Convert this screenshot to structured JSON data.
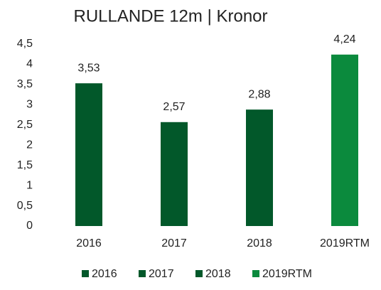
{
  "chart_data": {
    "type": "bar",
    "title": "RULLANDE 12m | Kronor",
    "categories": [
      "2016",
      "2017",
      "2018",
      "2019RTM"
    ],
    "values": [
      3.53,
      2.57,
      2.88,
      4.24
    ],
    "value_labels": [
      "3,53",
      "2,57",
      "2,88",
      "4,24"
    ],
    "colors": [
      "#02582a",
      "#02582a",
      "#02582a",
      "#0b8a3d"
    ],
    "ylim": [
      0,
      4.5
    ],
    "yticks": [
      0,
      {
        "value": 0.5,
        "label": "0,5"
      },
      1,
      {
        "value": 1.5,
        "label": "1,5"
      },
      2,
      {
        "value": 2.5,
        "label": "2,5"
      },
      3,
      {
        "value": 3.5,
        "label": "3,5"
      },
      4,
      {
        "value": 4.5,
        "label": "4,5"
      }
    ],
    "grid": false,
    "legend": "bottom"
  }
}
